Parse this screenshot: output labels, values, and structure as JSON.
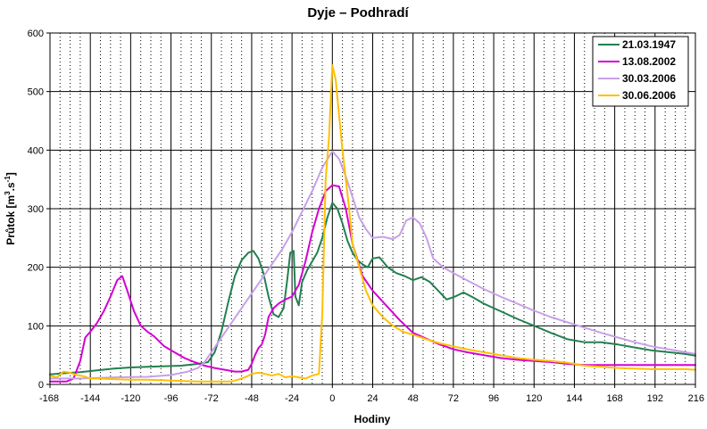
{
  "chart_data": {
    "type": "line",
    "title": "Dyje – Podhradí",
    "xlabel": "Hodiny",
    "ylabel_main": "Průtok [m",
    "ylabel_sup1": "3",
    "ylabel_mid": ".s",
    "ylabel_sup2": "-1",
    "ylabel_end": "]",
    "xlim": [
      -168,
      216
    ],
    "ylim": [
      0,
      600
    ],
    "xticks": [
      "-168",
      "-144",
      "-120",
      "-96",
      "-72",
      "-48",
      "-24",
      "0",
      "24",
      "48",
      "72",
      "96",
      "120",
      "144",
      "168",
      "192",
      "216"
    ],
    "yticks": [
      "0",
      "100",
      "200",
      "300",
      "400",
      "500",
      "600"
    ],
    "grid": true,
    "legend_position": "top-right",
    "series": [
      {
        "name": "21.03.1947",
        "color": "#238050",
        "x": [
          -168,
          -160,
          -150,
          -140,
          -130,
          -120,
          -110,
          -100,
          -90,
          -80,
          -74,
          -70,
          -66,
          -62,
          -58,
          -54,
          -50,
          -47,
          -44,
          -41,
          -38,
          -35,
          -32,
          -29,
          -27,
          -25,
          -23,
          -22,
          -20,
          -18,
          -15,
          -12,
          -9,
          -6,
          -3,
          0,
          3,
          6,
          9,
          12,
          15,
          18,
          21,
          24,
          28,
          33,
          38,
          43,
          48,
          53,
          58,
          63,
          68,
          73,
          78,
          84,
          90,
          100,
          110,
          120,
          130,
          140,
          150,
          160,
          170,
          180,
          190,
          200,
          210,
          216
        ],
        "y": [
          17,
          19,
          21,
          24,
          27,
          29,
          30,
          31,
          32,
          35,
          38,
          55,
          90,
          140,
          185,
          212,
          225,
          228,
          215,
          190,
          150,
          120,
          115,
          130,
          175,
          225,
          228,
          150,
          135,
          175,
          195,
          210,
          225,
          250,
          285,
          310,
          300,
          275,
          245,
          225,
          212,
          205,
          200,
          215,
          217,
          200,
          190,
          185,
          178,
          183,
          175,
          160,
          145,
          150,
          157,
          148,
          138,
          125,
          112,
          100,
          88,
          77,
          72,
          72,
          68,
          63,
          58,
          55,
          52,
          49
        ]
      },
      {
        "name": "13.08.2002",
        "color": "#d400d4",
        "x": [
          -168,
          -158,
          -154,
          -150,
          -147,
          -144,
          -140,
          -136,
          -132,
          -128,
          -125,
          -122,
          -118,
          -114,
          -110,
          -106,
          -100,
          -94,
          -88,
          -82,
          -76,
          -70,
          -64,
          -58,
          -54,
          -50,
          -48,
          -46,
          -44,
          -42,
          -40,
          -38,
          -35,
          -32,
          -28,
          -24,
          -20,
          -16,
          -12,
          -8,
          -4,
          0,
          4,
          8,
          12,
          18,
          24,
          32,
          40,
          48,
          56,
          64,
          72,
          80,
          90,
          100,
          110,
          120,
          130,
          140,
          150,
          160,
          170,
          180,
          190,
          200,
          210,
          216
        ],
        "y": [
          5,
          5,
          10,
          40,
          80,
          90,
          105,
          125,
          150,
          178,
          185,
          160,
          125,
          100,
          90,
          82,
          65,
          55,
          45,
          38,
          32,
          28,
          25,
          22,
          22,
          25,
          35,
          50,
          62,
          68,
          85,
          115,
          130,
          138,
          145,
          150,
          170,
          210,
          260,
          300,
          330,
          340,
          338,
          300,
          240,
          185,
          160,
          135,
          110,
          88,
          78,
          68,
          60,
          55,
          50,
          45,
          42,
          40,
          38,
          35,
          33,
          33,
          33,
          33,
          33,
          33,
          33,
          33
        ]
      },
      {
        "name": "30.03.2006",
        "color": "#c8a0e8",
        "x": [
          -168,
          -150,
          -130,
          -110,
          -96,
          -86,
          -80,
          -76,
          -72,
          -66,
          -60,
          -54,
          -48,
          -42,
          -36,
          -30,
          -24,
          -18,
          -12,
          -6,
          0,
          4,
          8,
          12,
          16,
          20,
          24,
          30,
          36,
          40,
          44,
          48,
          52,
          56,
          60,
          66,
          72,
          80,
          90,
          100,
          110,
          120,
          130,
          140,
          150,
          160,
          170,
          180,
          190,
          200,
          210,
          216
        ],
        "y": [
          10,
          10,
          12,
          13,
          16,
          22,
          28,
          38,
          55,
          80,
          105,
          130,
          155,
          180,
          205,
          230,
          260,
          295,
          330,
          370,
          398,
          385,
          355,
          320,
          285,
          265,
          250,
          252,
          248,
          255,
          280,
          285,
          275,
          250,
          215,
          200,
          190,
          178,
          163,
          150,
          138,
          126,
          115,
          106,
          97,
          88,
          80,
          72,
          65,
          60,
          55,
          52
        ]
      },
      {
        "name": "30.06.2006",
        "color": "#ffc000",
        "x": [
          -168,
          -164,
          -160,
          -156,
          -152,
          -148,
          -144,
          -140,
          -130,
          -120,
          -110,
          -100,
          -90,
          -80,
          -70,
          -60,
          -56,
          -52,
          -48,
          -44,
          -40,
          -36,
          -32,
          -28,
          -24,
          -20,
          -16,
          -12,
          -8,
          -6,
          -4,
          -2,
          0,
          2,
          4,
          6,
          8,
          10,
          12,
          16,
          20,
          24,
          30,
          36,
          42,
          48,
          56,
          64,
          72,
          80,
          90,
          100,
          110,
          120,
          130,
          140,
          150,
          160,
          170,
          180,
          190,
          200,
          210,
          216
        ],
        "y": [
          15,
          12,
          22,
          20,
          16,
          14,
          10,
          10,
          9,
          8,
          8,
          7,
          6,
          5,
          5,
          5,
          8,
          12,
          18,
          20,
          18,
          15,
          18,
          12,
          14,
          12,
          10,
          15,
          18,
          120,
          350,
          420,
          545,
          520,
          460,
          400,
          350,
          300,
          240,
          200,
          160,
          135,
          115,
          100,
          90,
          85,
          77,
          70,
          65,
          60,
          55,
          50,
          45,
          42,
          40,
          37,
          32,
          30,
          28,
          27,
          26,
          26,
          26,
          25
        ]
      }
    ]
  }
}
